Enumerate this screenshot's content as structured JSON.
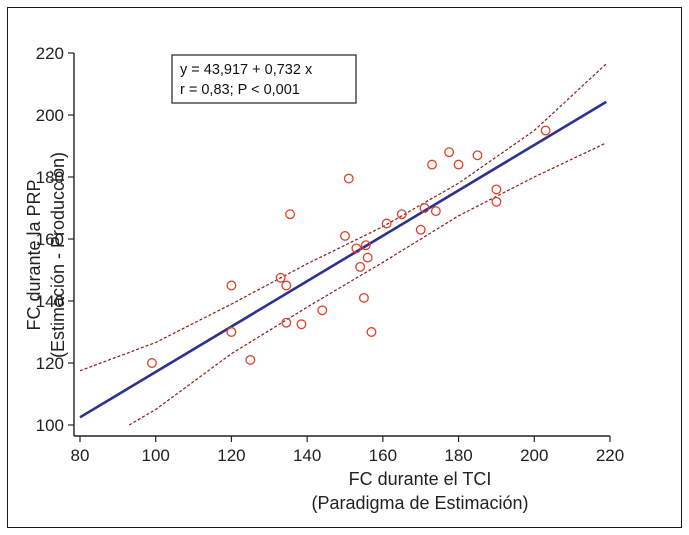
{
  "chart_data": {
    "type": "scatter",
    "xlabel": [
      "FC durante el TCI",
      "(Paradigma de Estimación)"
    ],
    "ylabel": [
      "FC durante la PRP",
      "(Estimación - Producción)"
    ],
    "xlim": [
      80,
      220
    ],
    "ylim": [
      100,
      220
    ],
    "xticks": [
      80,
      100,
      120,
      140,
      160,
      180,
      200,
      220
    ],
    "yticks": [
      100,
      120,
      140,
      160,
      180,
      200,
      220
    ],
    "grid": false,
    "annotation": [
      "y = 43,917  +  0,732  x",
      "r = 0,83; P < 0,001"
    ],
    "regression": {
      "intercept": 43.917,
      "slope": 0.732,
      "x_range": [
        80,
        219
      ]
    },
    "confidence_band": {
      "upper": [
        [
          80,
          117.5
        ],
        [
          100,
          126.6
        ],
        [
          120,
          139
        ],
        [
          140,
          152
        ],
        [
          160,
          164
        ],
        [
          180,
          178
        ],
        [
          200,
          195
        ],
        [
          219,
          216.5
        ]
      ],
      "lower": [
        [
          93,
          100
        ],
        [
          100,
          105
        ],
        [
          120,
          123
        ],
        [
          140,
          138
        ],
        [
          160,
          152.5
        ],
        [
          180,
          167.5
        ],
        [
          200,
          180
        ],
        [
          219,
          191
        ]
      ]
    },
    "points": [
      [
        99,
        120
      ],
      [
        120,
        145
      ],
      [
        120,
        130
      ],
      [
        125,
        121
      ],
      [
        133,
        147.5
      ],
      [
        134.5,
        145
      ],
      [
        134.5,
        133
      ],
      [
        135.5,
        168
      ],
      [
        138.5,
        132.5
      ],
      [
        144,
        137
      ],
      [
        150,
        161
      ],
      [
        151,
        179.5
      ],
      [
        153,
        157
      ],
      [
        154,
        151
      ],
      [
        155,
        141
      ],
      [
        155.5,
        158
      ],
      [
        156,
        154
      ],
      [
        157,
        130
      ],
      [
        161,
        165
      ],
      [
        165,
        168
      ],
      [
        170,
        163
      ],
      [
        171,
        170
      ],
      [
        173,
        184
      ],
      [
        174,
        169
      ],
      [
        177.5,
        188
      ],
      [
        180,
        184
      ],
      [
        185,
        187
      ],
      [
        190,
        176
      ],
      [
        190,
        172
      ],
      [
        203,
        195
      ]
    ],
    "colors": {
      "line": "#2b3192",
      "band": "#8b1a1a",
      "points": "#e0402a",
      "axis": "#222222"
    }
  }
}
